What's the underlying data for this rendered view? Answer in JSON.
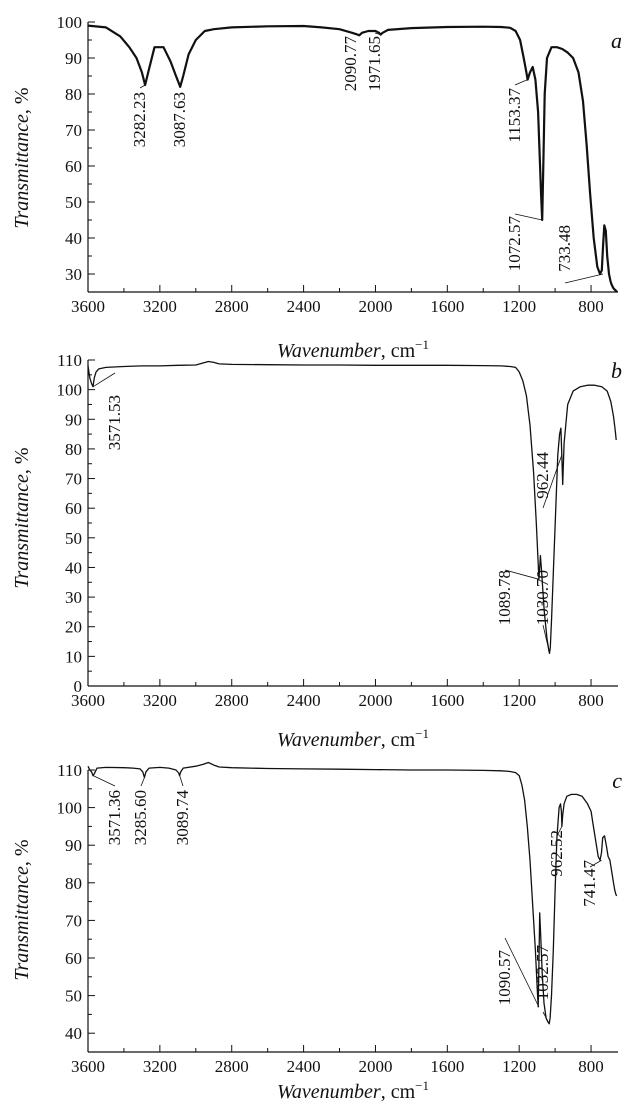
{
  "figure": {
    "x_unit_suffix": ", cm",
    "x_unit_exponent": "−1"
  },
  "chart_data": [
    {
      "type": "line",
      "panel_label": "a",
      "xlabel": "Wavenumber",
      "ylabel": "Transmittance, %",
      "xlim": [
        3600,
        650
      ],
      "ylim": [
        25,
        100
      ],
      "x_ticks": [
        3600,
        3200,
        2800,
        2400,
        2000,
        1600,
        1200,
        800
      ],
      "y_ticks": [
        30,
        40,
        50,
        60,
        70,
        80,
        90,
        100
      ],
      "grid": false,
      "series": [
        {
          "x": [
            3600,
            3500,
            3420,
            3370,
            3330,
            3300,
            3282,
            3265,
            3230,
            3180,
            3140,
            3110,
            3087,
            3070,
            3040,
            3000,
            2950,
            2900,
            2800,
            2600,
            2400,
            2300,
            2200,
            2130,
            2100,
            2090,
            2075,
            2040,
            2000,
            1980,
            1971,
            1960,
            1930,
            1800,
            1600,
            1400,
            1300,
            1250,
            1220,
            1195,
            1175,
            1160,
            1153,
            1140,
            1125,
            1110,
            1095,
            1085,
            1078,
            1072,
            1066,
            1058,
            1045,
            1020,
            990,
            960,
            930,
            900,
            870,
            845,
            825,
            805,
            785,
            765,
            750,
            740,
            733,
            726,
            718,
            710,
            700,
            692,
            685,
            675,
            665,
            655
          ],
          "y": [
            99,
            98.5,
            96,
            93,
            90,
            86,
            82.5,
            86,
            93,
            93,
            89,
            85,
            82,
            85,
            91,
            95,
            97.5,
            98,
            98.5,
            98.8,
            98.9,
            98.5,
            98,
            97,
            96.5,
            96.3,
            97,
            97.5,
            97.5,
            97,
            96.5,
            97,
            97.8,
            98.3,
            98.6,
            98.7,
            98.6,
            98.4,
            97.5,
            95,
            90,
            86,
            84,
            86,
            87.5,
            84,
            75,
            62,
            52,
            45,
            60,
            80,
            90,
            93,
            93,
            92.5,
            91.5,
            90,
            86,
            78,
            66,
            52,
            40,
            32,
            30,
            31,
            38,
            43.5,
            42,
            35,
            30,
            28,
            27,
            26,
            25.5,
            25
          ]
        }
      ],
      "annotations": [
        {
          "x": 3282.23,
          "text": "3282.23"
        },
        {
          "x": 3087.63,
          "text": "3087.63"
        },
        {
          "x": 2090.77,
          "text": "2090.77"
        },
        {
          "x": 1971.65,
          "text": "1971.65"
        },
        {
          "x": 1153.37,
          "text": "1153.37"
        },
        {
          "x": 1072.57,
          "text": "1072.57"
        },
        {
          "x": 733.48,
          "text": "733.48"
        }
      ]
    },
    {
      "type": "line",
      "panel_label": "b",
      "xlabel": "Wavenumber",
      "ylabel": "Transmittance, %",
      "xlim": [
        3600,
        650
      ],
      "ylim": [
        0,
        110
      ],
      "x_ticks": [
        3600,
        3200,
        2800,
        2400,
        2000,
        1600,
        1200,
        800
      ],
      "y_ticks": [
        0,
        10,
        20,
        30,
        40,
        50,
        60,
        70,
        80,
        90,
        100,
        110
      ],
      "grid": false,
      "series": [
        {
          "x": [
            3600,
            3590,
            3580,
            3572,
            3565,
            3555,
            3540,
            3500,
            3400,
            3300,
            3200,
            3100,
            3000,
            2960,
            2930,
            2900,
            2870,
            2800,
            2600,
            2400,
            2200,
            2000,
            1800,
            1600,
            1400,
            1300,
            1250,
            1220,
            1200,
            1180,
            1160,
            1140,
            1120,
            1105,
            1095,
            1090,
            1086,
            1082,
            1078,
            1070,
            1060,
            1045,
            1035,
            1031,
            1027,
            1020,
            1010,
            995,
            985,
            975,
            968,
            963,
            958,
            950,
            930,
            900,
            860,
            820,
            780,
            740,
            710,
            690,
            675,
            665,
            660
          ],
          "y": [
            108,
            104,
            102,
            101,
            104,
            106,
            107,
            107.5,
            107.8,
            108,
            108,
            108.2,
            108.3,
            109,
            109.5,
            109.2,
            108.7,
            108.5,
            108.4,
            108.3,
            108.3,
            108.2,
            108.2,
            108.2,
            108.1,
            108,
            107.8,
            107.5,
            106,
            103,
            98,
            88,
            72,
            55,
            42,
            36,
            40,
            44,
            41,
            34,
            25,
            16,
            12,
            11,
            13,
            22,
            38,
            62,
            78,
            85,
            87,
            78,
            68,
            82,
            95,
            99.5,
            101,
            101.5,
            101.5,
            101,
            99.5,
            96,
            91,
            86,
            83
          ]
        }
      ],
      "annotations": [
        {
          "x": 3571.53,
          "text": "3571.53"
        },
        {
          "x": 1089.78,
          "text": "1089.78"
        },
        {
          "x": 1030.7,
          "text": "1030.70"
        },
        {
          "x": 962.44,
          "text": "962.44"
        }
      ]
    },
    {
      "type": "line",
      "panel_label": "c",
      "xlabel": "Wavenumber",
      "ylabel": "Transmittance, %",
      "xlim": [
        3600,
        650
      ],
      "ylim": [
        35,
        110
      ],
      "x_ticks": [
        3600,
        3200,
        2800,
        2400,
        2000,
        1600,
        1200,
        800
      ],
      "y_ticks": [
        40,
        50,
        60,
        70,
        80,
        90,
        100,
        110
      ],
      "grid": false,
      "series": [
        {
          "x": [
            3600,
            3590,
            3580,
            3572,
            3565,
            3550,
            3500,
            3400,
            3350,
            3310,
            3295,
            3286,
            3278,
            3260,
            3200,
            3150,
            3110,
            3095,
            3090,
            3084,
            3070,
            3000,
            2960,
            2930,
            2900,
            2870,
            2800,
            2600,
            2400,
            2200,
            2000,
            1800,
            1600,
            1400,
            1300,
            1250,
            1220,
            1200,
            1185,
            1170,
            1155,
            1140,
            1125,
            1110,
            1100,
            1094,
            1090,
            1086,
            1080,
            1072,
            1062,
            1050,
            1040,
            1033,
            1028,
            1020,
            1010,
            1000,
            990,
            978,
            970,
            965,
            962,
            958,
            950,
            935,
            910,
            880,
            850,
            820,
            800,
            790,
            780,
            770,
            760,
            750,
            742,
            735,
            725,
            715,
            705,
            695,
            685,
            675,
            668,
            662,
            658
          ],
          "y": [
            111,
            110,
            109.5,
            108.5,
            109,
            110.5,
            110.7,
            110.6,
            110.5,
            110.3,
            109.5,
            108,
            109.5,
            110.5,
            110.7,
            110.5,
            110,
            109.2,
            108.5,
            109.5,
            110.5,
            111,
            111.5,
            112,
            111.3,
            110.8,
            110.6,
            110.4,
            110.3,
            110.2,
            110.1,
            110,
            110,
            109.9,
            109.8,
            109.6,
            109.3,
            108.5,
            106,
            102,
            95,
            86,
            74,
            62,
            52,
            47,
            58,
            72,
            66,
            56,
            48,
            44,
            43,
            42.5,
            44,
            50,
            62,
            78,
            92,
            100,
            101,
            99,
            95,
            98,
            101,
            103,
            103.5,
            103.5,
            103,
            101,
            99,
            96,
            93,
            90,
            87,
            86,
            88,
            92,
            92.5,
            90,
            87,
            86,
            83,
            80,
            78,
            77,
            76.5
          ]
        }
      ],
      "annotations": [
        {
          "x": 3571.36,
          "text": "3571.36"
        },
        {
          "x": 3285.6,
          "text": "3285.60"
        },
        {
          "x": 3089.74,
          "text": "3089.74"
        },
        {
          "x": 1090.57,
          "text": "1090.57"
        },
        {
          "x": 1032.57,
          "text": "1032.57"
        },
        {
          "x": 962.52,
          "text": "962.52"
        },
        {
          "x": 741.47,
          "text": "741.47"
        }
      ]
    }
  ]
}
